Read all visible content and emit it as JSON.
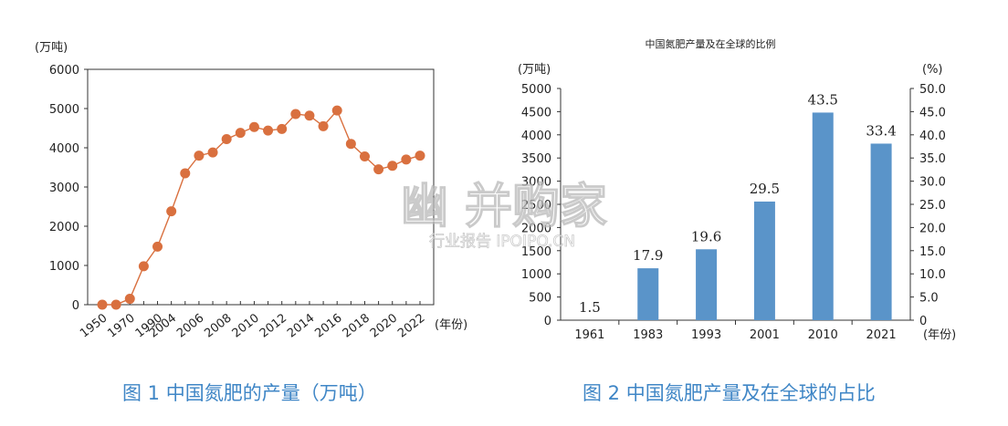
{
  "chart_data": [
    {
      "type": "line",
      "ylabel": "(万吨)",
      "xlabel": "(年份)",
      "ylim": [
        0,
        6000
      ],
      "yticks": [
        0,
        1000,
        2000,
        3000,
        4000,
        5000,
        6000
      ],
      "x_tick_labels": [
        "1950",
        "1970",
        "1990",
        "2004",
        "2006",
        "2008",
        "2010",
        "2012",
        "2014",
        "2016",
        "2018",
        "2020",
        "2022"
      ],
      "x": [
        1950,
        1960,
        1970,
        1980,
        1990,
        2004,
        2005,
        2006,
        2007,
        2008,
        2009,
        2010,
        2011,
        2012,
        2013,
        2014,
        2015,
        2016,
        2017,
        2018,
        2019,
        2020,
        2021,
        2022
      ],
      "values": [
        0,
        0,
        150,
        980,
        1480,
        2380,
        3350,
        3800,
        3880,
        4220,
        4380,
        4530,
        4440,
        4480,
        4860,
        4820,
        4550,
        4950,
        4100,
        3780,
        3450,
        3540,
        3700,
        3800
      ],
      "grid": false,
      "series_color": "#d9703f",
      "caption": "图 1 中国氮肥的产量（万吨）"
    },
    {
      "type": "bar",
      "title": "中国氮肥产量及在全球的比例",
      "categories": [
        "1961",
        "1983",
        "1993",
        "2001",
        "2010",
        "2021"
      ],
      "values": [
        0,
        1120,
        1530,
        2560,
        4480,
        3810
      ],
      "data_labels": [
        "1.5",
        "17.9",
        "19.6",
        "29.5",
        "43.5",
        "33.4"
      ],
      "ylabel_left": "(万吨)",
      "ylabel_right": "(%)",
      "xlabel": "(年份)",
      "ylim": [
        0,
        5000
      ],
      "yticks_left": [
        "0",
        "500",
        "1000",
        "1500",
        "2000",
        "2500",
        "3000",
        "3500",
        "4000",
        "4500",
        "5000"
      ],
      "yticks_right": [
        "0",
        "5.0",
        "10.0",
        "15.0",
        "20.0",
        "25.0",
        "30.0",
        "35.0",
        "40.0",
        "45.0",
        "50.0"
      ],
      "grid": false,
      "bar_color": "#5a94c9",
      "caption": "图 2 中国氮肥产量及在全球的占比"
    }
  ],
  "watermark": {
    "main": "幽 并购家",
    "sub": "行业报告 IPOIPO.CN"
  }
}
